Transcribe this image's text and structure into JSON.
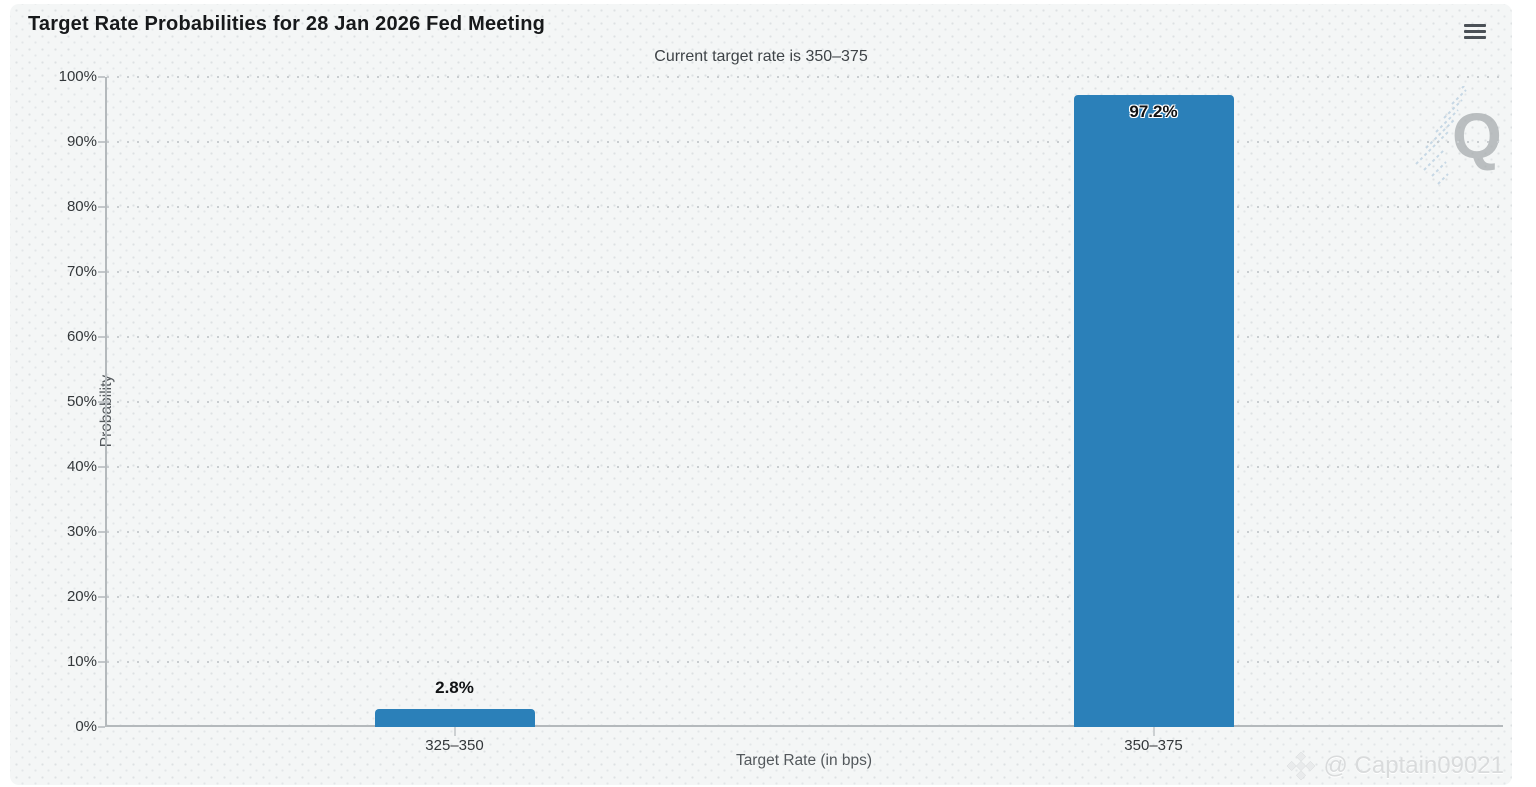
{
  "header": {
    "title": "Target Rate Probabilities for 28 Jan 2026 Fed Meeting",
    "subtitle": "Current target rate is 350–375",
    "menu_icon": "hamburger-menu-icon"
  },
  "chart_data": {
    "type": "bar",
    "title": "Target Rate Probabilities for 28 Jan 2026 Fed Meeting",
    "subtitle": "Current target rate is 350–375",
    "categories": [
      "325–350",
      "350–375"
    ],
    "values": [
      2.8,
      97.2
    ],
    "value_labels": [
      "2.8%",
      "97.2%"
    ],
    "xlabel": "Target Rate (in bps)",
    "ylabel": "Probability",
    "ylim": [
      0,
      100
    ],
    "ytick_step": 10,
    "ytick_suffix": "%",
    "grid": "horizontal-dotted",
    "legend": "none",
    "bar_color": "#2b80b9"
  },
  "watermarks": {
    "logo_letter": "Q",
    "credit_icon": "binance-diamond-icon",
    "credit_text": "@ Captain09021"
  },
  "colors": {
    "panel_background": "#f4f6f6",
    "bar": "#2b80b9",
    "axis": "#b4b9bc",
    "grid_dots": "#c9cdd0",
    "title_text": "#17191b",
    "tick_text": "#33373a",
    "axis_title_text": "#53585c",
    "watermark_text": "#d9dbdc"
  }
}
